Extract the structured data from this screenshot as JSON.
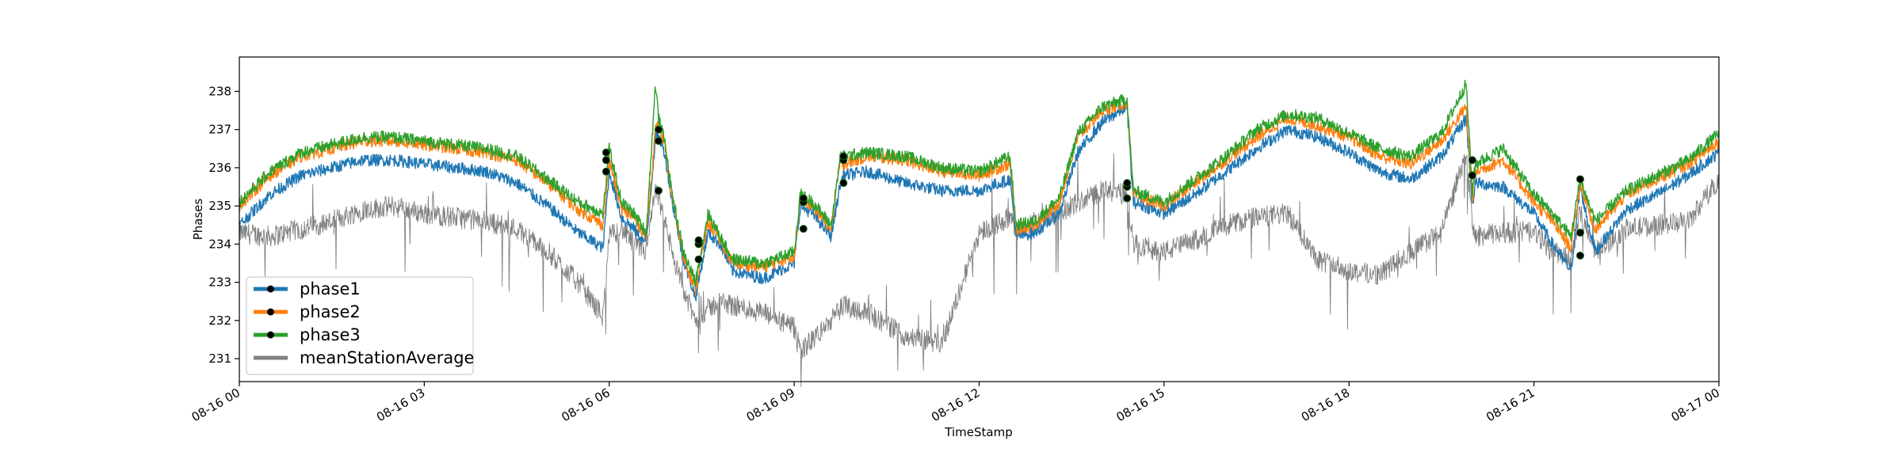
{
  "chart_data": {
    "type": "line",
    "xlabel": "TimeStamp",
    "ylabel": "Phases",
    "xlim": [
      "2024-08-16 00:00",
      "2024-08-17 00:00"
    ],
    "ylim": [
      230.4,
      238.9
    ],
    "x_ticks": [
      {
        "value": 0,
        "label": "08-16 00"
      },
      {
        "value": 3,
        "label": "08-16 03"
      },
      {
        "value": 6,
        "label": "08-16 06"
      },
      {
        "value": 9,
        "label": "08-16 09"
      },
      {
        "value": 12,
        "label": "08-16 12"
      },
      {
        "value": 15,
        "label": "08-16 15"
      },
      {
        "value": 18,
        "label": "08-16 18"
      },
      {
        "value": 21,
        "label": "08-16 21"
      },
      {
        "value": 24,
        "label": "08-17 00"
      }
    ],
    "y_ticks": [
      231,
      232,
      233,
      234,
      235,
      236,
      237,
      238
    ],
    "grid": false,
    "legend_position": "lower-left",
    "x_hours": [
      0,
      0.5,
      1,
      1.5,
      2,
      2.5,
      3,
      3.5,
      4,
      4.5,
      5,
      5.5,
      5.9,
      6.0,
      6.2,
      6.4,
      6.6,
      6.75,
      6.8,
      6.9,
      7.0,
      7.2,
      7.4,
      7.6,
      7.8,
      8.0,
      8.5,
      9.0,
      9.1,
      9.3,
      9.6,
      9.75,
      9.8,
      10.2,
      10.8,
      11.4,
      12.0,
      12.5,
      12.6,
      12.9,
      13.3,
      13.6,
      14.0,
      14.4,
      14.5,
      15.0,
      15.5,
      16.0,
      16.5,
      17.0,
      17.5,
      18.0,
      18.5,
      19.0,
      19.5,
      19.9,
      20.0,
      20.05,
      20.5,
      21.0,
      21.3,
      21.6,
      21.75,
      21.9,
      22.0,
      22.5,
      23.0,
      23.5,
      24.0
    ],
    "series": [
      {
        "name": "phase1",
        "color": "#1f77b4",
        "values": [
          234.5,
          235.3,
          235.8,
          236.0,
          236.2,
          236.2,
          236.1,
          236.0,
          235.9,
          235.6,
          235.0,
          234.3,
          233.9,
          235.9,
          234.7,
          234.4,
          234.0,
          236.8,
          236.8,
          236.4,
          235.3,
          233.6,
          232.6,
          234.3,
          234.0,
          233.3,
          233.1,
          233.5,
          235.0,
          234.8,
          234.2,
          235.6,
          235.8,
          235.9,
          235.6,
          235.4,
          235.4,
          235.7,
          234.2,
          234.3,
          234.8,
          236.4,
          237.2,
          237.6,
          235.1,
          234.8,
          235.3,
          235.9,
          236.5,
          237.0,
          236.8,
          236.4,
          235.9,
          235.7,
          236.3,
          237.3,
          235.0,
          235.6,
          235.5,
          234.8,
          234.0,
          233.3,
          235.5,
          234.4,
          233.8,
          234.9,
          235.3,
          235.8,
          236.4
        ]
      },
      {
        "name": "phase2",
        "color": "#ff7f0e",
        "values": [
          235.0,
          235.8,
          236.3,
          236.5,
          236.7,
          236.7,
          236.6,
          236.5,
          236.4,
          236.2,
          235.6,
          234.9,
          234.5,
          236.2,
          234.9,
          234.7,
          234.2,
          237.0,
          237.1,
          236.6,
          235.4,
          233.7,
          232.8,
          234.6,
          234.1,
          233.5,
          233.4,
          233.7,
          235.2,
          235.0,
          234.4,
          236.2,
          236.1,
          236.3,
          236.2,
          235.9,
          235.8,
          236.1,
          234.4,
          234.5,
          235.1,
          236.8,
          237.5,
          237.7,
          235.3,
          235.0,
          235.6,
          236.2,
          236.8,
          237.3,
          237.1,
          236.8,
          236.3,
          236.1,
          236.7,
          237.6,
          235.2,
          235.9,
          236.2,
          235.1,
          234.6,
          233.9,
          235.6,
          234.8,
          234.4,
          235.3,
          235.7,
          236.1,
          236.7
        ]
      },
      {
        "name": "phase3",
        "color": "#2ca02c",
        "values": [
          235.1,
          235.9,
          236.4,
          236.6,
          236.8,
          236.8,
          236.7,
          236.6,
          236.5,
          236.3,
          235.7,
          235.1,
          234.8,
          236.5,
          235.1,
          234.8,
          234.3,
          238.2,
          237.3,
          236.7,
          235.5,
          233.8,
          233.0,
          234.8,
          234.2,
          233.6,
          233.5,
          233.8,
          235.3,
          235.1,
          234.5,
          236.3,
          236.3,
          236.4,
          236.3,
          236.0,
          235.9,
          236.3,
          234.5,
          234.6,
          235.2,
          236.9,
          237.6,
          237.8,
          235.4,
          235.1,
          235.7,
          236.3,
          237.0,
          237.4,
          237.3,
          236.9,
          236.5,
          236.3,
          236.9,
          238.2,
          235.4,
          236.1,
          236.5,
          235.3,
          234.8,
          234.2,
          235.7,
          235.0,
          234.6,
          235.4,
          235.8,
          236.2,
          236.9
        ]
      },
      {
        "name": "meanStationAverage",
        "color": "#808080",
        "values": [
          234.3,
          234.2,
          234.4,
          234.6,
          234.9,
          235.0,
          234.8,
          234.7,
          234.6,
          234.4,
          233.8,
          233.0,
          232.1,
          234.2,
          234.4,
          234.0,
          233.8,
          235.4,
          235.2,
          234.6,
          233.9,
          232.8,
          232.0,
          232.3,
          232.5,
          232.4,
          232.2,
          231.8,
          231.2,
          231.5,
          232.0,
          232.3,
          232.4,
          232.2,
          231.6,
          231.4,
          234.3,
          234.7,
          234.3,
          234.6,
          234.8,
          235.1,
          235.4,
          235.3,
          234.0,
          233.8,
          234.1,
          234.5,
          234.7,
          234.8,
          233.6,
          233.3,
          233.2,
          233.8,
          234.3,
          236.4,
          234.5,
          234.2,
          234.3,
          234.3,
          233.8,
          233.6,
          234.8,
          234.3,
          233.8,
          234.4,
          234.5,
          234.6,
          235.7
        ]
      }
    ],
    "markers": [
      {
        "series": "phase1",
        "x": [
          5.95,
          6.8,
          7.45,
          9.15,
          9.8,
          14.4,
          20.0,
          21.75
        ],
        "y": [
          235.9,
          235.4,
          233.6,
          234.4,
          235.6,
          235.2,
          235.8,
          233.7
        ]
      },
      {
        "series": "phase2",
        "x": [
          5.95,
          6.8,
          7.45,
          9.15,
          9.8,
          14.4,
          20.0,
          21.75
        ],
        "y": [
          236.2,
          236.7,
          234.0,
          235.1,
          236.2,
          235.5,
          235.8,
          234.3
        ]
      },
      {
        "series": "phase3",
        "x": [
          5.95,
          6.8,
          7.45,
          9.15,
          9.8,
          14.4,
          20.0,
          21.75
        ],
        "y": [
          236.4,
          237.0,
          234.1,
          235.2,
          236.3,
          235.6,
          236.2,
          235.7
        ]
      }
    ],
    "legend": [
      {
        "label": "phase1",
        "color": "#1f77b4",
        "marker": true
      },
      {
        "label": "phase2",
        "color": "#ff7f0e",
        "marker": true
      },
      {
        "label": "phase3",
        "color": "#2ca02c",
        "marker": true
      },
      {
        "label": "meanStationAverage",
        "color": "#808080",
        "marker": false
      }
    ]
  }
}
